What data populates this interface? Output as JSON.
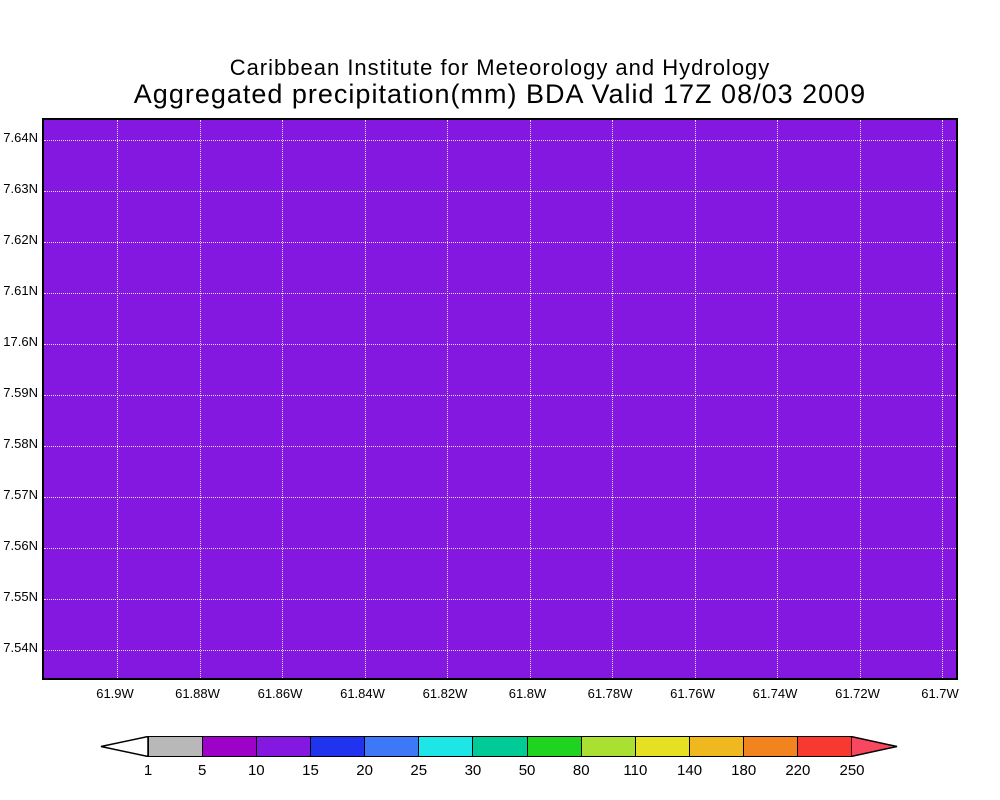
{
  "header": {
    "title_line1": "Caribbean Institute for Meteorology and Hydrology",
    "title_line2": "Aggregated precipitation(mm) BDA Valid 17Z 08/03 2009"
  },
  "map": {
    "fill_color": "#8418e0",
    "grid_color": "#ffffff"
  },
  "axes": {
    "y_ticks": [
      "7.64N",
      "7.63N",
      "7.62N",
      "7.61N",
      "17.6N",
      "7.59N",
      "7.58N",
      "7.57N",
      "7.56N",
      "7.55N",
      "7.54N"
    ],
    "x_ticks": [
      "61.9W",
      "61.88W",
      "61.86W",
      "61.84W",
      "61.82W",
      "61.8W",
      "61.78W",
      "61.76W",
      "61.74W",
      "61.72W",
      "61.7W"
    ]
  },
  "colorbar": {
    "arrow_left_color": "#ffffff",
    "arrow_right_color": "#f84860",
    "segments": [
      {
        "value_range": "1-5",
        "color": "#b8b8b8"
      },
      {
        "value_range": "5-10",
        "color": "#9e02c8"
      },
      {
        "value_range": "10-15",
        "color": "#8418e0"
      },
      {
        "value_range": "15-20",
        "color": "#2034f0"
      },
      {
        "value_range": "20-25",
        "color": "#3c78f8"
      },
      {
        "value_range": "25-30",
        "color": "#1ee6e6"
      },
      {
        "value_range": "30-50",
        "color": "#00ca96"
      },
      {
        "value_range": "50-80",
        "color": "#1ed41e"
      },
      {
        "value_range": "80-110",
        "color": "#aae032"
      },
      {
        "value_range": "110-140",
        "color": "#e6e022"
      },
      {
        "value_range": "140-180",
        "color": "#eeb81e"
      },
      {
        "value_range": "180-220",
        "color": "#f28420"
      },
      {
        "value_range": "220-250",
        "color": "#f8392f"
      }
    ],
    "labels": [
      "1",
      "5",
      "10",
      "15",
      "20",
      "25",
      "30",
      "50",
      "80",
      "110",
      "140",
      "180",
      "220",
      "250"
    ]
  },
  "chart_data": {
    "type": "heatmap",
    "suptitle": "Caribbean Institute for Meteorology and Hydrology",
    "title": "Aggregated precipitation(mm) BDA Valid 17Z 08/03 2009",
    "x_tick_labels": [
      "61.9W",
      "61.88W",
      "61.86W",
      "61.84W",
      "61.82W",
      "61.8W",
      "61.78W",
      "61.76W",
      "61.74W",
      "61.72W",
      "61.7W"
    ],
    "y_tick_labels": [
      "7.64N",
      "7.63N",
      "7.62N",
      "7.61N",
      "17.6N",
      "7.59N",
      "7.58N",
      "7.57N",
      "7.56N",
      "7.55N",
      "7.54N"
    ],
    "field_description": "Uniform precipitation value across the entire displayed lat/lon domain",
    "uniform_value_bin_mm": "10-15",
    "fill_color": "#8418e0",
    "colorbar_levels": [
      1,
      5,
      10,
      15,
      20,
      25,
      30,
      50,
      80,
      110,
      140,
      180,
      220,
      250
    ],
    "colorbar_colors": [
      "#b8b8b8",
      "#9e02c8",
      "#8418e0",
      "#2034f0",
      "#3c78f8",
      "#1ee6e6",
      "#00ca96",
      "#1ed41e",
      "#aae032",
      "#e6e022",
      "#eeb81e",
      "#f28420",
      "#f8392f"
    ],
    "legend_position": "bottom",
    "grid": true
  }
}
